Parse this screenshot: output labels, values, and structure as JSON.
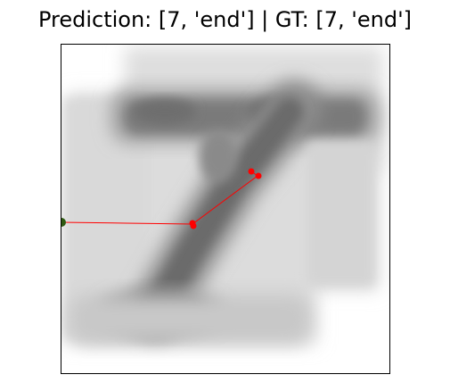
{
  "title": "Prediction: [7, 'end'] | GT: [7, 'end']",
  "image": {
    "subject": "blurred-handwritten-digit-7",
    "palette": {
      "background": "#ffffff",
      "light_gray": "#d7d7d7",
      "mid_gray": "#b3b3b3",
      "dark_gray": "#6d6d6d",
      "stroke_dark": "#555555"
    }
  },
  "trajectory": {
    "color": "#ff0000",
    "start_marker_color": "#2f5a12",
    "points_color": "#ff0000"
  }
}
